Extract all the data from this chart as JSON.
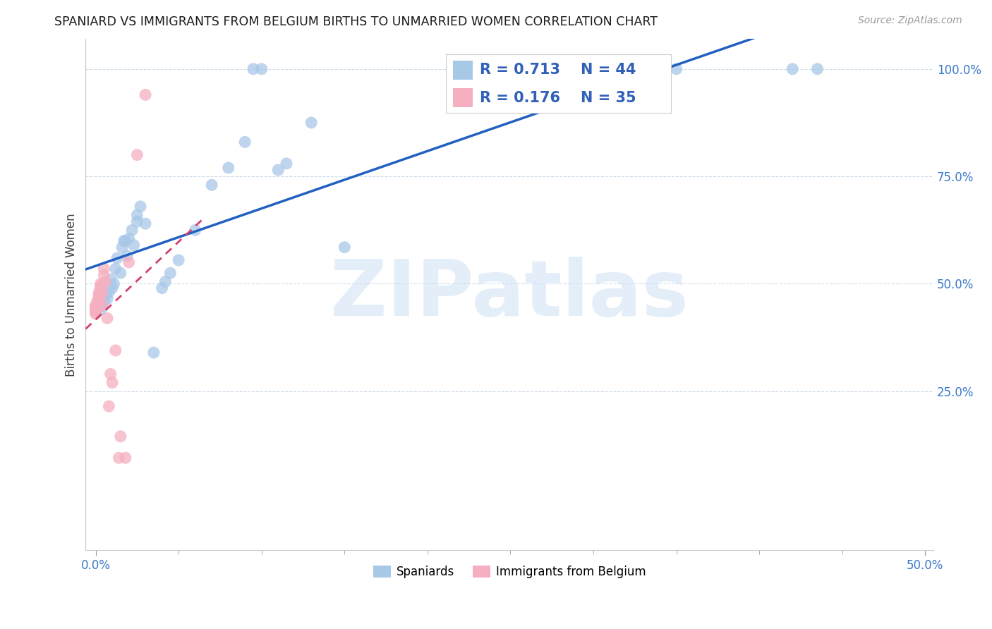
{
  "title": "SPANIARD VS IMMIGRANTS FROM BELGIUM BIRTHS TO UNMARRIED WOMEN CORRELATION CHART",
  "source": "Source: ZipAtlas.com",
  "ylabel": "Births to Unmarried Women",
  "blue_R": 0.713,
  "blue_N": 44,
  "pink_R": 0.176,
  "pink_N": 35,
  "blue_color": "#a8c8e8",
  "pink_color": "#f5afc0",
  "blue_line_color": "#2060c0",
  "pink_line_color": "#d04070",
  "watermark": "ZIPatlas",
  "watermark_color": "#cce0f5",
  "legend_label_blue": "Spaniards",
  "legend_label_pink": "Immigrants from Belgium",
  "xlim": [
    -0.006,
    0.505
  ],
  "ylim": [
    -0.12,
    1.07
  ],
  "x_ticks": [
    0.0,
    0.5
  ],
  "x_tick_labels": [
    "0.0%",
    "50.0%"
  ],
  "y_ticks": [
    0.25,
    0.5,
    0.75,
    1.0
  ],
  "y_tick_labels": [
    "25.0%",
    "50.0%",
    "75.0%",
    "100.0%"
  ],
  "blue_scatter_x": [
    0.003,
    0.003,
    0.004,
    0.004,
    0.005,
    0.006,
    0.007,
    0.008,
    0.009,
    0.01,
    0.011,
    0.012,
    0.013,
    0.015,
    0.016,
    0.017,
    0.018,
    0.019,
    0.02,
    0.022,
    0.023,
    0.025,
    0.025,
    0.027,
    0.03,
    0.035,
    0.04,
    0.042,
    0.045,
    0.05,
    0.06,
    0.07,
    0.08,
    0.09,
    0.095,
    0.1,
    0.11,
    0.115,
    0.13,
    0.15,
    0.33,
    0.35,
    0.42,
    0.435
  ],
  "blue_scatter_y": [
    0.44,
    0.455,
    0.45,
    0.46,
    0.46,
    0.475,
    0.465,
    0.48,
    0.51,
    0.49,
    0.5,
    0.535,
    0.56,
    0.525,
    0.585,
    0.6,
    0.6,
    0.565,
    0.605,
    0.625,
    0.59,
    0.645,
    0.66,
    0.68,
    0.64,
    0.34,
    0.49,
    0.505,
    0.525,
    0.555,
    0.625,
    0.73,
    0.77,
    0.83,
    1.0,
    1.0,
    0.765,
    0.78,
    0.875,
    0.585,
    1.0,
    1.0,
    1.0,
    1.0
  ],
  "pink_scatter_x": [
    0.0,
    0.0,
    0.0,
    0.0,
    0.0,
    0.0,
    0.0,
    0.0,
    0.001,
    0.001,
    0.001,
    0.001,
    0.002,
    0.002,
    0.002,
    0.003,
    0.003,
    0.003,
    0.003,
    0.004,
    0.004,
    0.005,
    0.005,
    0.006,
    0.007,
    0.008,
    0.009,
    0.01,
    0.012,
    0.014,
    0.015,
    0.018,
    0.02,
    0.025,
    0.03
  ],
  "pink_scatter_y": [
    0.44,
    0.445,
    0.45,
    0.43,
    0.435,
    0.445,
    0.44,
    0.435,
    0.45,
    0.455,
    0.445,
    0.46,
    0.475,
    0.47,
    0.48,
    0.47,
    0.49,
    0.5,
    0.495,
    0.48,
    0.45,
    0.52,
    0.535,
    0.505,
    0.42,
    0.215,
    0.29,
    0.27,
    0.345,
    0.095,
    0.145,
    0.095,
    0.55,
    0.8,
    0.94
  ]
}
